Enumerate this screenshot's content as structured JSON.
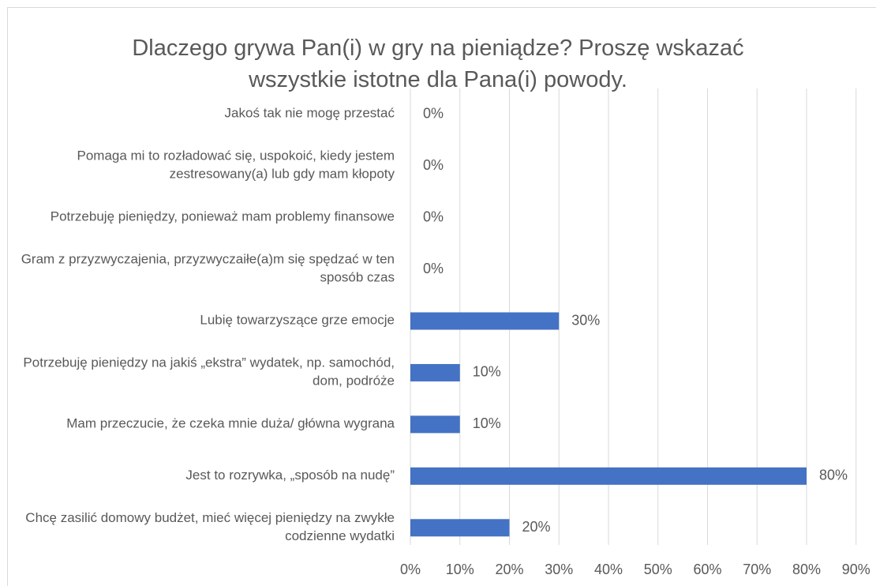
{
  "chart_data": {
    "type": "bar",
    "orientation": "horizontal",
    "title": "Dlaczego grywa Pan(i) w gry na pieniądze? Proszę wskazać wszystkie istotne dla Pana(i) powody.",
    "categories": [
      "Jakoś tak nie mogę przestać",
      "Pomaga mi to rozładować się, uspokoić, kiedy jestem zestresowany(a) lub gdy mam kłopoty",
      "Potrzebuję pieniędzy, ponieważ mam problemy finansowe",
      "Gram z przyzwyczajenia, przyzwyczaiłe(a)m się spędzać w ten sposób czas",
      "Lubię towarzyszące grze emocje",
      "Potrzebuję pieniędzy na jakiś „ekstra” wydatek, np. samochód, dom, podróże",
      "Mam przeczucie, że czeka mnie duża/ główna wygrana",
      "Jest to rozrywka, „sposób na nudę”",
      "Chcę zasilić domowy budżet, mieć więcej pieniędzy na zwykłe codzienne wydatki"
    ],
    "values": [
      0,
      0,
      0,
      0,
      30,
      10,
      10,
      80,
      20
    ],
    "value_labels": [
      "0%",
      "0%",
      "0%",
      "0%",
      "30%",
      "10%",
      "10%",
      "80%",
      "20%"
    ],
    "color": "#4472c4",
    "xlim": [
      0,
      90
    ],
    "xticks": [
      {
        "value": 0,
        "label": "0%"
      },
      {
        "value": 10,
        "label": "10%"
      },
      {
        "value": 20,
        "label": "20%"
      },
      {
        "value": 30,
        "label": "30%"
      },
      {
        "value": 40,
        "label": "40%"
      },
      {
        "value": 50,
        "label": "50%"
      },
      {
        "value": 60,
        "label": "60%"
      },
      {
        "value": 70,
        "label": "70%"
      },
      {
        "value": 80,
        "label": "80%"
      },
      {
        "value": 90,
        "label": "90%"
      }
    ],
    "grid": true
  }
}
